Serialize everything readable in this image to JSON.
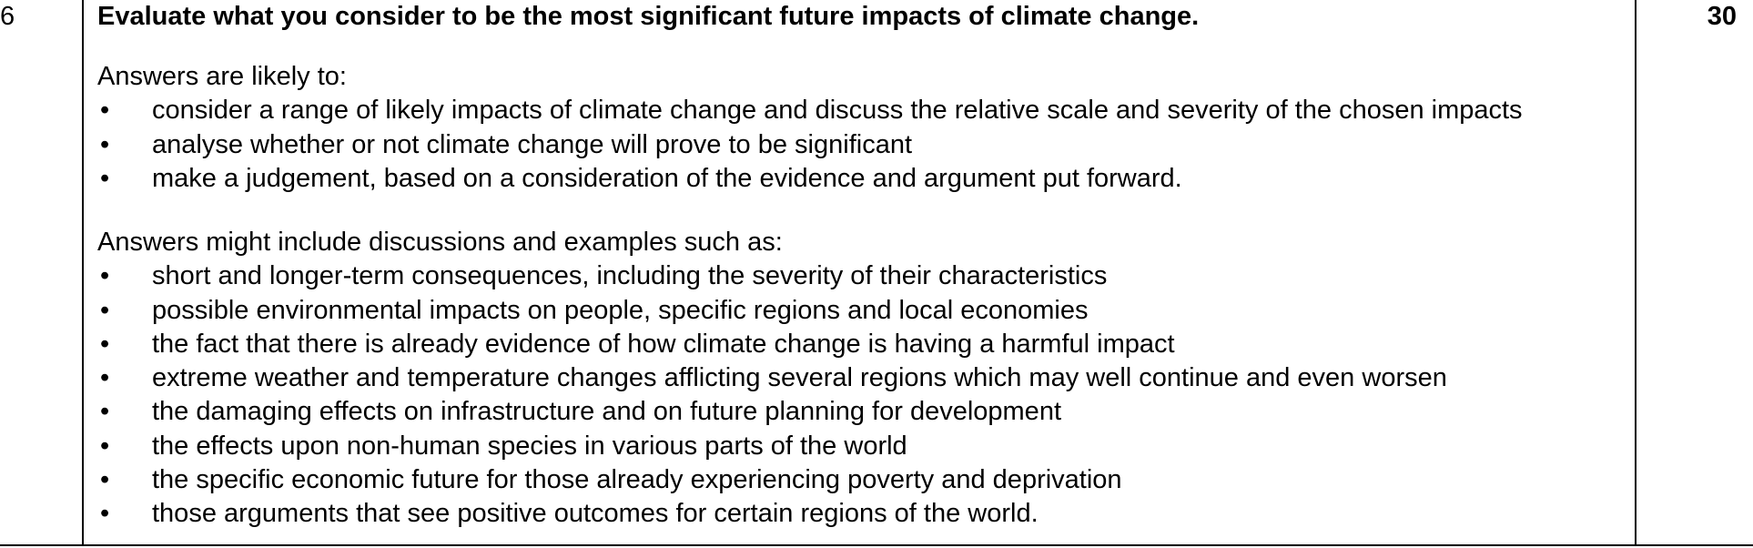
{
  "question": {
    "number": "6",
    "text": "Evaluate what you consider to be the most significant future impacts of climate change.",
    "marks": "30"
  },
  "likely": {
    "intro": "Answers are likely to:",
    "items": [
      "consider a range of likely impacts of climate change and discuss the relative scale and severity of the chosen impacts",
      "analyse whether or not climate change will prove to be significant",
      "make a judgement, based on a consideration of the evidence and argument put forward."
    ]
  },
  "include": {
    "intro": "Answers might include discussions and examples such as:",
    "items": [
      "short and longer-term consequences, including the severity of their characteristics",
      "possible environmental impacts on people, specific regions and local economies",
      "the fact that there is already evidence of how climate change is having a harmful impact",
      "extreme weather and temperature changes afflicting several regions which may well continue and even worsen",
      "the damaging effects on infrastructure and on future planning for development",
      "the effects upon non-human species in various parts of the world",
      "the specific economic future for those already experiencing poverty and deprivation",
      "those arguments that see positive outcomes for certain regions of the world."
    ]
  },
  "bullet_glyph": "•"
}
